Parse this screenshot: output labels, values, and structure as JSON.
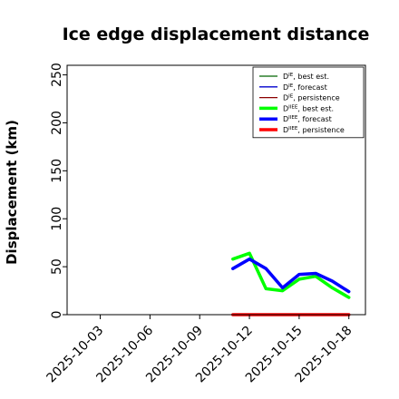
{
  "chart_data": {
    "type": "line",
    "title": "Ice edge displacement distance",
    "xlabel": "",
    "ylabel": "Displacement (km)",
    "ylim": [
      0,
      260
    ],
    "yticks": [
      0,
      50,
      100,
      150,
      200,
      250
    ],
    "x_dates": [
      "2025-10-01",
      "2025-10-19"
    ],
    "xticks": [
      {
        "date": "2025-10-03",
        "label": "2025-10-03",
        "color": "#000000"
      },
      {
        "date": "2025-10-06",
        "label": "2025-10-06",
        "color": "#000000"
      },
      {
        "date": "2025-10-09",
        "label": "2025-10-09",
        "color": "#228B22"
      },
      {
        "date": "2025-10-12",
        "label": "2025-10-12",
        "color": "#000000"
      },
      {
        "date": "2025-10-15",
        "label": "2025-10-15",
        "color": "#000000"
      },
      {
        "date": "2025-10-18",
        "label": "2025-10-18",
        "color": "#000000"
      }
    ],
    "legend_position": "top-right",
    "series": [
      {
        "name": "D^IE, best est.",
        "base": "D",
        "sup": "IE",
        "rest": ", best est.",
        "color": "#006400",
        "width": 1.3,
        "x": [],
        "y": []
      },
      {
        "name": "D^IE, forecast",
        "base": "D",
        "sup": "IE",
        "rest": ", forecast",
        "color": "#0000cd",
        "width": 1.3,
        "x": [],
        "y": []
      },
      {
        "name": "D^IE, persistence",
        "base": "D",
        "sup": "IE",
        "rest": ", persistence",
        "color": "#8b0000",
        "width": 1.3,
        "x": [],
        "y": []
      },
      {
        "name": "D^IIEE, best est.",
        "base": "D",
        "sup": "IIEE",
        "rest": ", best est.",
        "color": "#00ff00",
        "width": 3.5,
        "x": [
          "2025-10-11",
          "2025-10-12",
          "2025-10-13",
          "2025-10-14",
          "2025-10-15",
          "2025-10-16",
          "2025-10-17",
          "2025-10-18"
        ],
        "y": [
          58,
          64,
          27,
          25,
          37,
          40,
          28,
          18
        ]
      },
      {
        "name": "D^IIEE, forecast",
        "base": "D",
        "sup": "IIEE",
        "rest": ", forecast",
        "color": "#0000ff",
        "width": 3.5,
        "x": [
          "2025-10-11",
          "2025-10-12",
          "2025-10-13",
          "2025-10-14",
          "2025-10-15",
          "2025-10-16",
          "2025-10-17",
          "2025-10-18"
        ],
        "y": [
          48,
          58,
          48,
          28,
          42,
          43,
          35,
          24
        ]
      },
      {
        "name": "D^IIEE, persistence",
        "base": "D",
        "sup": "IIEE",
        "rest": ", persistence",
        "color": "#ff0000",
        "width": 3.5,
        "x": [
          "2025-10-11",
          "2025-10-12",
          "2025-10-13",
          "2025-10-14",
          "2025-10-15",
          "2025-10-16",
          "2025-10-17",
          "2025-10-18"
        ],
        "y": [
          0,
          0,
          0,
          0,
          0,
          0,
          0,
          0
        ]
      }
    ]
  }
}
